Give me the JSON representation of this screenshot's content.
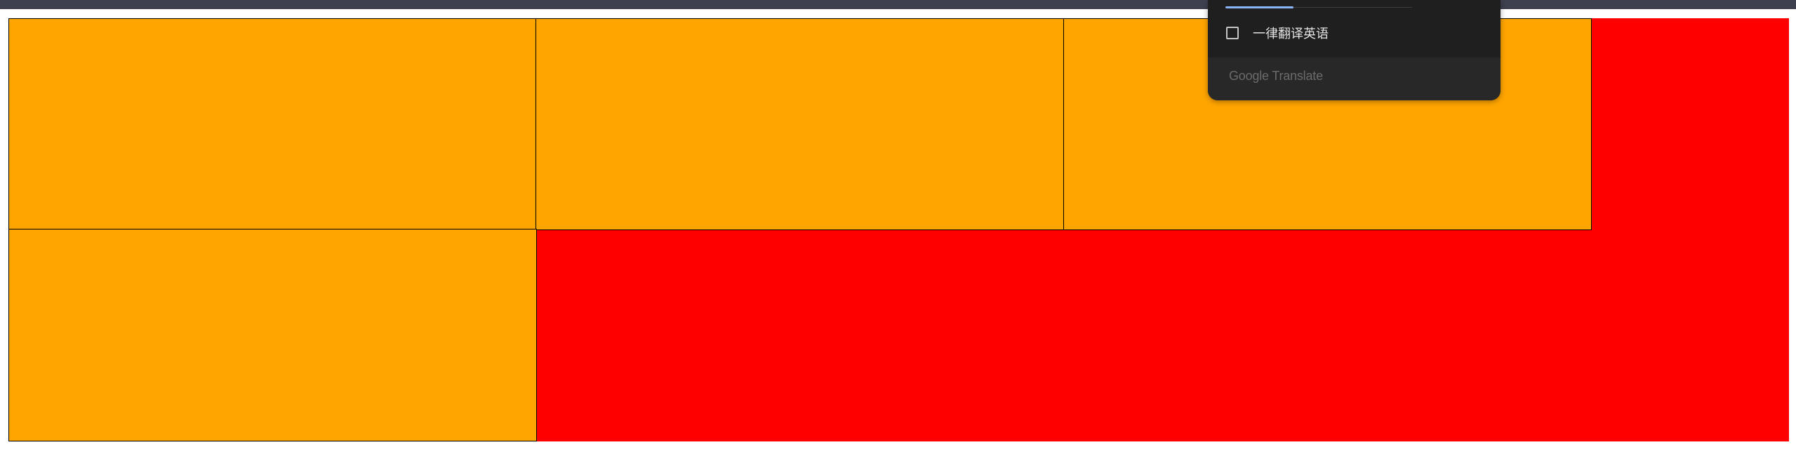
{
  "colors": {
    "topbar": "#3e4050",
    "stage_background": "#ff0000",
    "cell_fill": "#ffa500",
    "cell_border": "#000000",
    "popup_background": "#1f1f1f",
    "popup_footer": "#282828",
    "tab_indicator": "#8ab4f8"
  },
  "grid": {
    "cells": [
      "cell-1",
      "cell-2",
      "cell-3",
      "cell-4"
    ]
  },
  "translate_popup": {
    "always_translate_label": "一律翻译英语",
    "always_translate_checked": false,
    "checkbox_icon": "checkbox-unchecked-icon",
    "brand": "Google Translate"
  }
}
